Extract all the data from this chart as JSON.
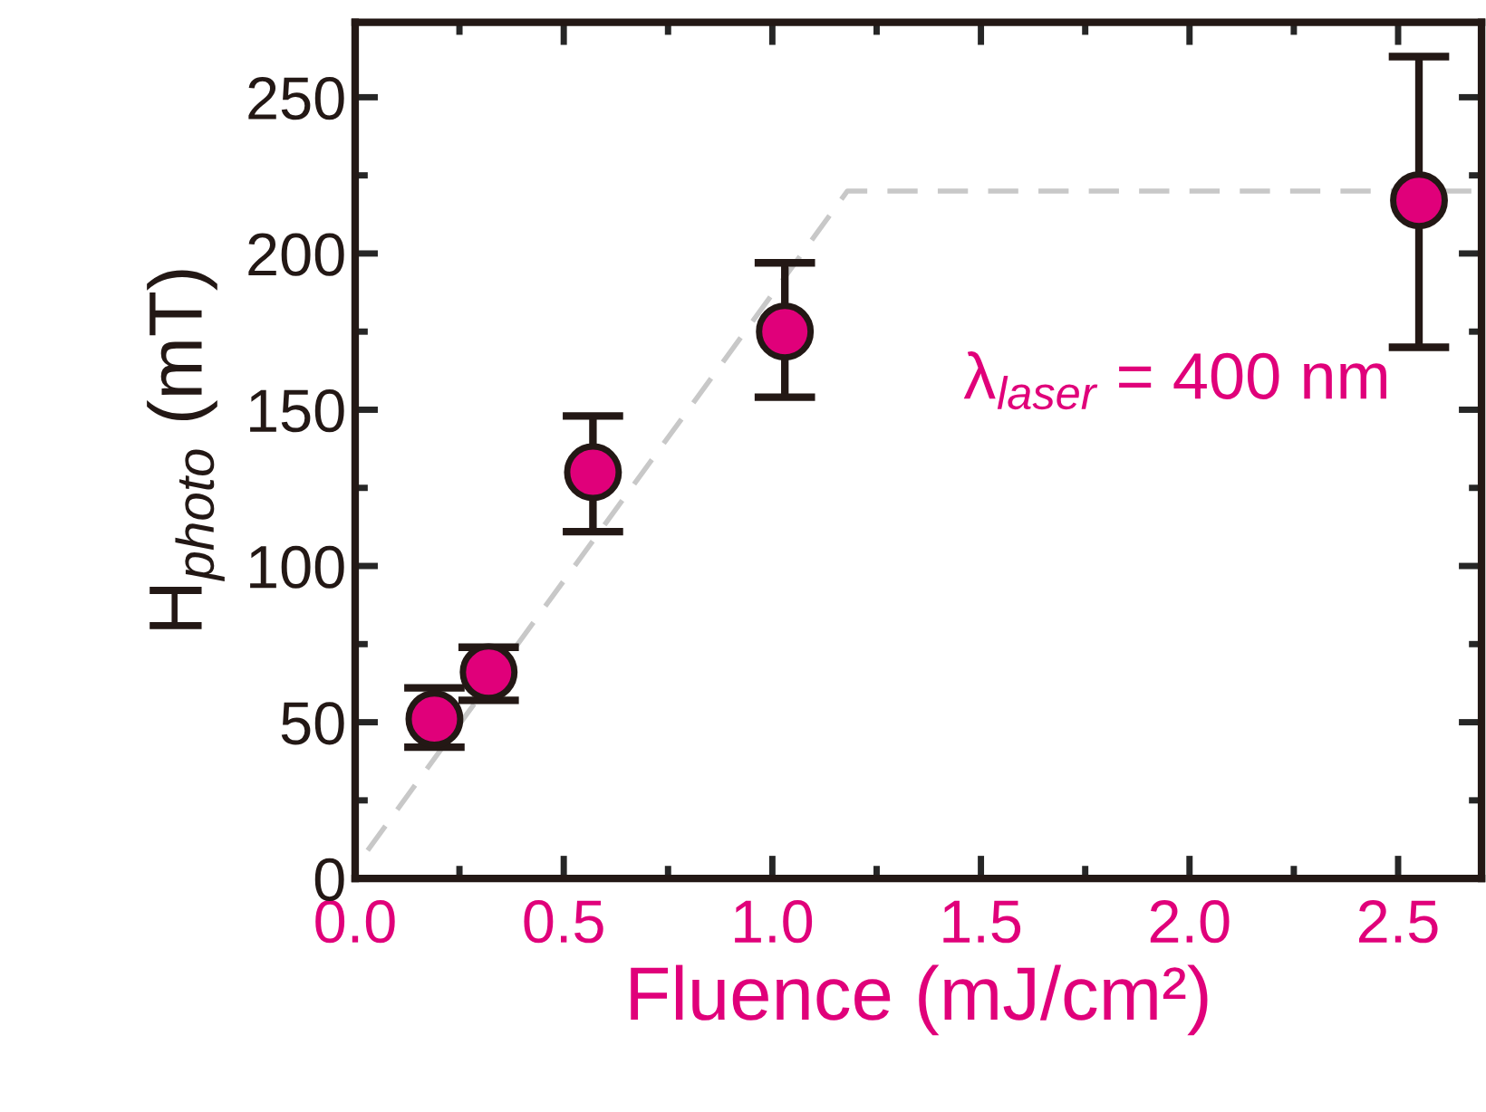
{
  "chart_data": {
    "type": "scatter",
    "xlabel": "Fluence (mJ/cm²)",
    "ylabel": "H$_{photo}$ (mT)",
    "annotations": [
      "λ$_{laser}$ = 400 nm"
    ],
    "series": [
      {
        "type": "line",
        "color": "#c8c8c8",
        "line_style": "dashed",
        "marker": "none",
        "x": [
          0.03,
          1.18,
          2.7
        ],
        "values": [
          9,
          220,
          220
        ]
      },
      {
        "color": "#e0007a",
        "marker": "circle",
        "x": [
          0.19,
          0.32,
          0.57,
          1.03,
          2.55
        ],
        "values": [
          51,
          66,
          130,
          175,
          217
        ],
        "errors": [
          [
            42,
            61
          ],
          [
            57,
            74
          ],
          [
            111,
            148
          ],
          [
            154,
            197
          ],
          [
            170,
            263
          ]
        ]
      }
    ],
    "xlim": [
      0,
      2.7
    ],
    "ylim": [
      0,
      274
    ],
    "xticks": [
      {
        "value": 0,
        "label": "0.0"
      },
      {
        "value": 0.5,
        "label": "0.5"
      },
      {
        "value": 1,
        "label": "1.0"
      },
      {
        "value": 1.5,
        "label": "1.5"
      },
      {
        "value": 2,
        "label": "2.0"
      },
      {
        "value": 2.5,
        "label": "2.5"
      }
    ],
    "yticks": [
      0,
      50,
      100,
      150,
      200,
      250
    ],
    "grid": false,
    "legend": false
  }
}
